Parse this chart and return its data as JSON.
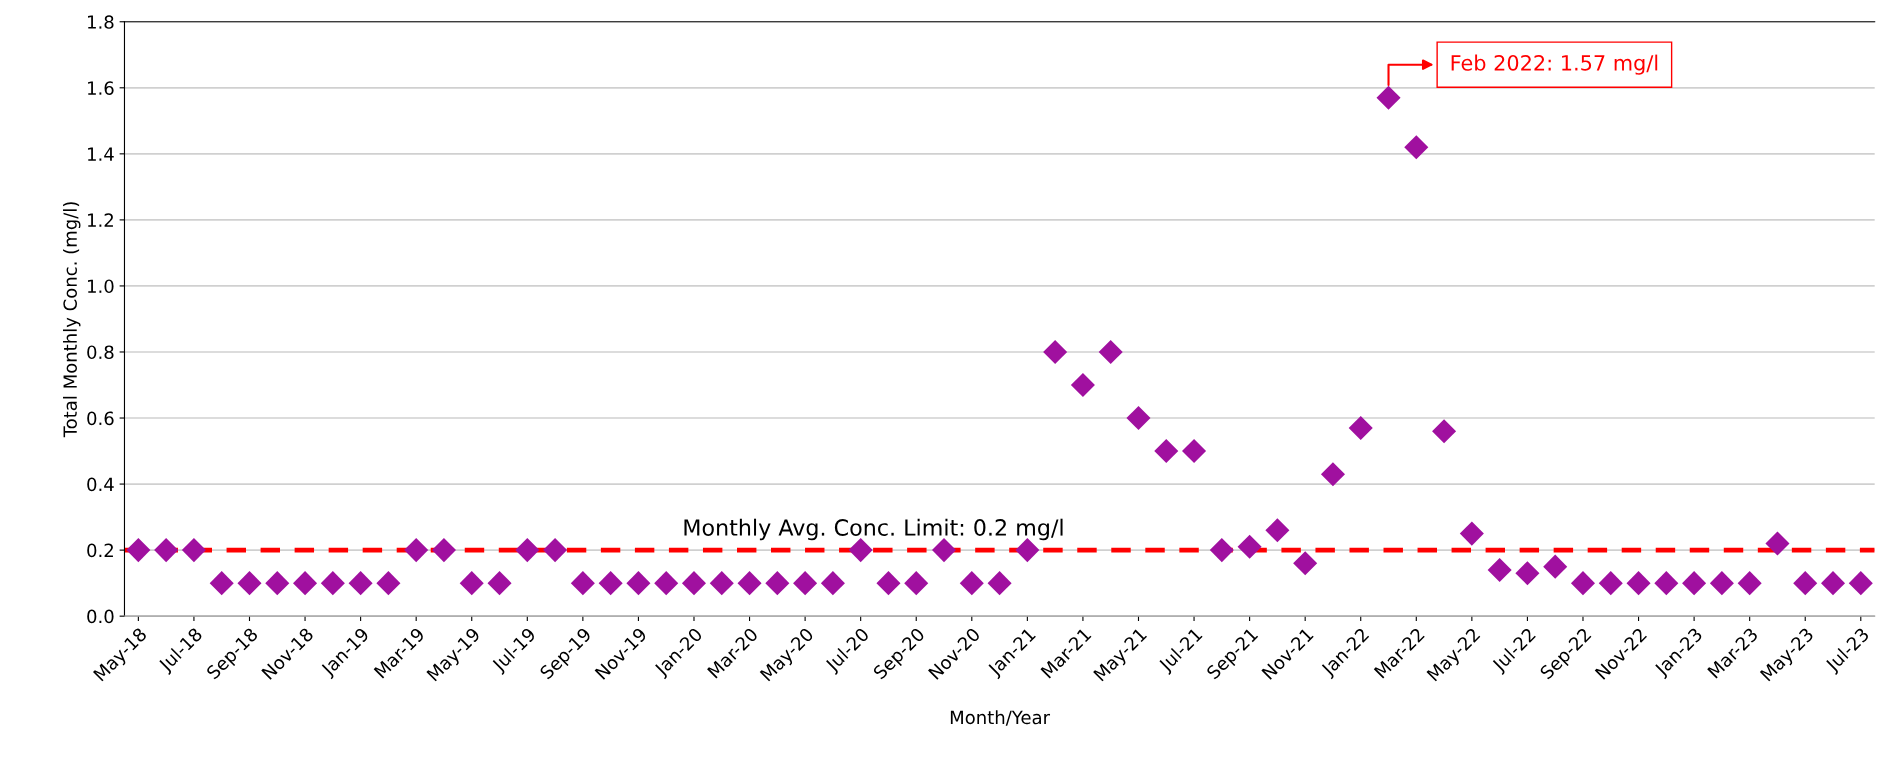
{
  "chart_data": {
    "type": "scatter",
    "xlabel": "Month/Year",
    "ylabel": "Total Monthly Conc. (mg/l)",
    "categories": [
      "May-18",
      null,
      "Jul-18",
      null,
      "Sep-18",
      null,
      "Nov-18",
      null,
      "Jan-19",
      null,
      "Mar-19",
      null,
      "May-19",
      null,
      "Jul-19",
      null,
      "Sep-19",
      null,
      "Nov-19",
      null,
      "Jan-20",
      null,
      "Mar-20",
      null,
      "May-20",
      null,
      "Jul-20",
      null,
      "Sep-20",
      null,
      "Nov-20",
      null,
      "Jan-21",
      null,
      "Mar-21",
      null,
      "May-21",
      null,
      "Jul-21",
      null,
      "Sep-21",
      null,
      "Nov-21",
      null,
      "Jan-22",
      null,
      "Mar-22",
      null,
      "May-22",
      null,
      "Jul-22",
      null,
      "Sep-22",
      null,
      "Nov-22",
      null,
      "Jan-23",
      null,
      "Mar-23",
      null,
      "May-23",
      null,
      "Jul-23"
    ],
    "series": [
      {
        "color": "#a0109f",
        "values": [
          0.2,
          0.2,
          0.2,
          0.1,
          0.1,
          0.1,
          0.1,
          0.1,
          0.1,
          0.1,
          0.2,
          0.2,
          0.1,
          0.1,
          0.2,
          0.2,
          0.1,
          0.1,
          0.1,
          0.1,
          0.1,
          0.1,
          0.1,
          0.1,
          0.1,
          0.1,
          0.2,
          0.1,
          0.1,
          0.2,
          0.1,
          0.1,
          0.2,
          0.8,
          0.7,
          0.8,
          0.6,
          0.5,
          0.5,
          0.2,
          0.21,
          0.26,
          0.16,
          0.43,
          0.57,
          1.57,
          1.42,
          0.56,
          0.25,
          0.14,
          0.13,
          0.15,
          0.1,
          0.1,
          0.1,
          0.1,
          0.1,
          0.1,
          0.1,
          0.22,
          0.1,
          0.1,
          0.1
        ]
      }
    ],
    "marker": "diamond",
    "ylim": [
      0,
      1.8
    ],
    "yticks": [
      {
        "value": 0,
        "label": "0.0"
      },
      0.2,
      0.4,
      0.6,
      0.8,
      {
        "value": 1,
        "label": "1.0"
      },
      1.2,
      1.4,
      1.6,
      1.8
    ],
    "grid": "y",
    "ref_lines": [
      {
        "axis": "y",
        "value": 0.2,
        "label": "Monthly Avg. Conc. Limit: 0.2 mg/l",
        "color": "#ff0000",
        "line_style": "dashed"
      }
    ],
    "annotations": [
      "Feb 2022: 1.57 mg/l"
    ]
  }
}
